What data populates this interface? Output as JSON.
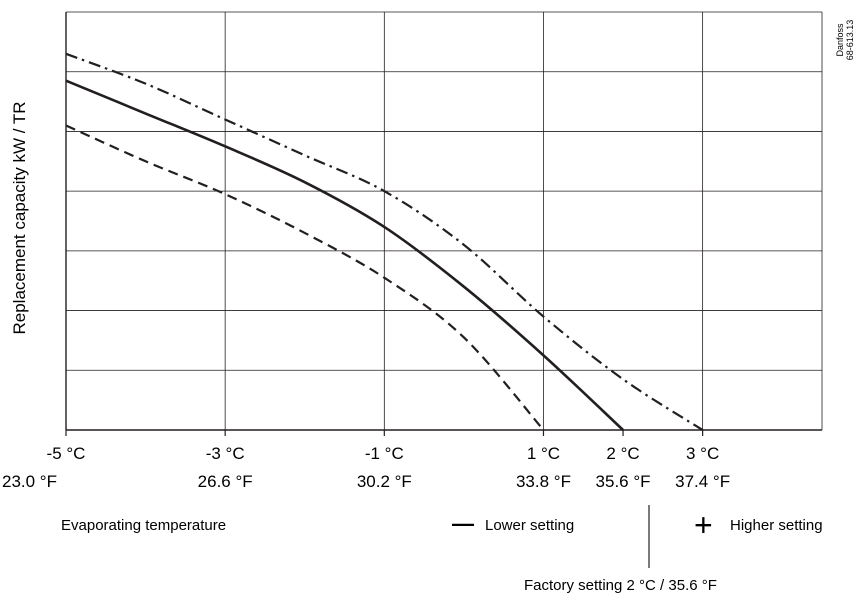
{
  "chart_data": {
    "type": "line",
    "title": "",
    "ylabel": "Replacement capacity kW / TR",
    "xlabel": "Evaporating temperature",
    "xlim": [
      -5,
      4.5
    ],
    "ylim": [
      0,
      7
    ],
    "grid": true,
    "x_ticks": [
      -5,
      -3,
      -1,
      1,
      2,
      3
    ],
    "x_tick_labels_c": [
      "-5 °C",
      "-3 °C",
      "-1 °C",
      "1 °C",
      "2 °C",
      "3 °C"
    ],
    "x_tick_labels_f": [
      "23.0 °F",
      "26.6 °F",
      "30.2 °F",
      "33.8 °F",
      "35.6 °F",
      "37.4 °F"
    ],
    "x_grid": [
      -5,
      -3,
      -1,
      1,
      3,
      4.5
    ],
    "y_grid": [
      1,
      2,
      3,
      4,
      5,
      6,
      7
    ],
    "series": [
      {
        "style": "dash-dot",
        "points": [
          [
            -5,
            6.3
          ],
          [
            -4,
            5.8
          ],
          [
            -3,
            5.2
          ],
          [
            -2,
            4.6
          ],
          [
            -1,
            4.0
          ],
          [
            0,
            3.1
          ],
          [
            1,
            1.9
          ],
          [
            2,
            0.85
          ],
          [
            3,
            0
          ]
        ]
      },
      {
        "style": "solid",
        "points": [
          [
            -5,
            5.85
          ],
          [
            -4,
            5.3
          ],
          [
            -3,
            4.75
          ],
          [
            -2,
            4.15
          ],
          [
            -1,
            3.4
          ],
          [
            0,
            2.4
          ],
          [
            1,
            1.25
          ],
          [
            2,
            0
          ]
        ]
      },
      {
        "style": "dashed",
        "points": [
          [
            -5,
            5.1
          ],
          [
            -4,
            4.5
          ],
          [
            -3,
            3.95
          ],
          [
            -2,
            3.3
          ],
          [
            -1,
            2.55
          ],
          [
            0,
            1.55
          ],
          [
            1,
            0
          ]
        ]
      }
    ],
    "annotations": {
      "lower_sign": "—",
      "lower_label": "Lower setting",
      "higher_sign": "+",
      "higher_label": "Higher setting",
      "factory_label": "Factory setting 2 °C / 35.6 °F",
      "factory_x": 2
    },
    "credit_line1": "Danfoss",
    "credit_line2": "68-613.13"
  }
}
